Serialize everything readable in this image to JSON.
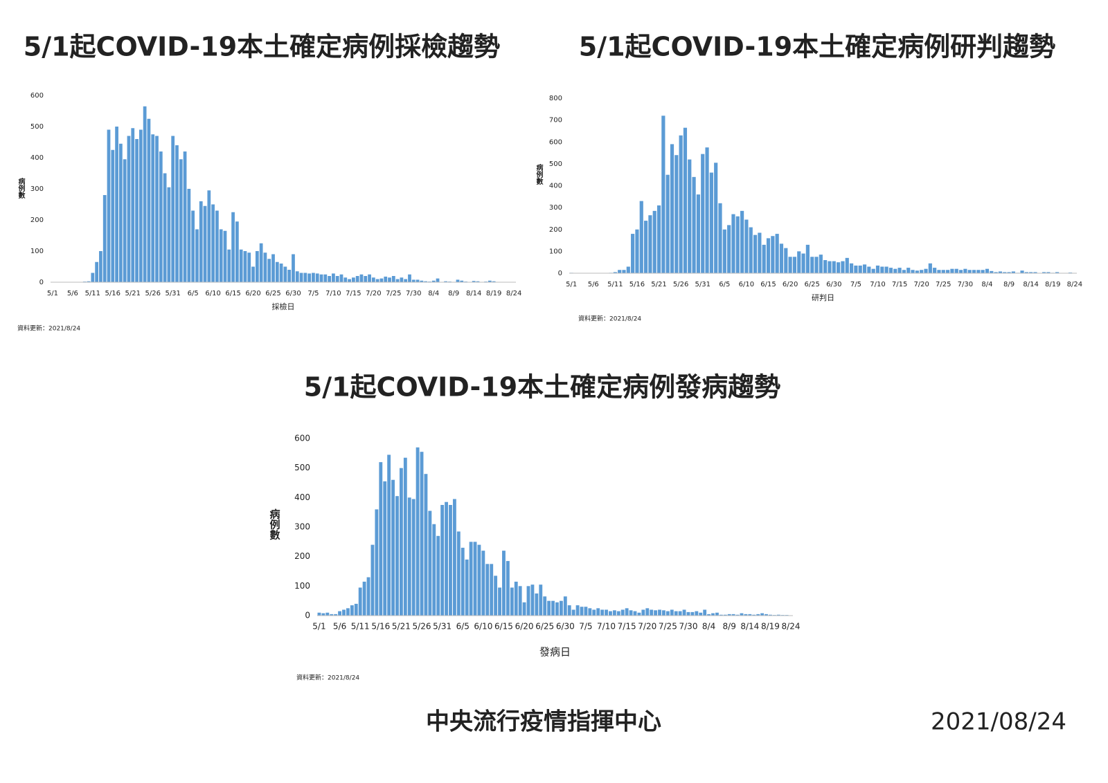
{
  "chart_data": [
    {
      "type": "bar",
      "title": "5/1起COVID-19本土確定病例採檢趨勢",
      "x_label": "採檢日",
      "y_label": "病例數",
      "note": "資料更新：2021/8/24",
      "color": "#5b9bd5",
      "grid": false,
      "categories": [
        "5/1",
        null,
        null,
        null,
        null,
        "5/6",
        null,
        null,
        null,
        null,
        "5/11",
        null,
        null,
        null,
        null,
        "5/16",
        null,
        null,
        null,
        null,
        "5/21",
        null,
        null,
        null,
        null,
        "5/26",
        null,
        null,
        null,
        null,
        "5/31",
        null,
        null,
        null,
        null,
        "6/5",
        null,
        null,
        null,
        null,
        "6/10",
        null,
        null,
        null,
        null,
        "6/15",
        null,
        null,
        null,
        null,
        "6/20",
        null,
        null,
        null,
        null,
        "6/25",
        null,
        null,
        null,
        null,
        "6/30",
        null,
        null,
        null,
        null,
        "7/5",
        null,
        null,
        null,
        null,
        "7/10",
        null,
        null,
        null,
        null,
        "7/15",
        null,
        null,
        null,
        null,
        "7/20",
        null,
        null,
        null,
        null,
        "7/25",
        null,
        null,
        null,
        null,
        "7/30",
        null,
        null,
        null,
        null,
        "8/4",
        null,
        null,
        null,
        null,
        "8/9",
        null,
        null,
        null,
        null,
        "8/14",
        null,
        null,
        null,
        null,
        "8/19",
        null,
        null,
        null,
        null,
        "8/24"
      ],
      "values": [
        0,
        0,
        0,
        0,
        0,
        0,
        0,
        0,
        2,
        3,
        30,
        65,
        100,
        280,
        490,
        425,
        500,
        445,
        395,
        470,
        495,
        460,
        490,
        565,
        525,
        475,
        470,
        420,
        350,
        305,
        470,
        440,
        395,
        420,
        300,
        230,
        170,
        260,
        245,
        295,
        250,
        230,
        170,
        165,
        105,
        225,
        195,
        105,
        100,
        95,
        50,
        100,
        125,
        95,
        75,
        90,
        65,
        60,
        50,
        40,
        90,
        35,
        30,
        30,
        28,
        30,
        28,
        25,
        25,
        20,
        28,
        20,
        25,
        15,
        10,
        15,
        20,
        25,
        20,
        25,
        15,
        10,
        12,
        18,
        15,
        20,
        10,
        15,
        10,
        25,
        8,
        8,
        5,
        3,
        2,
        5,
        12,
        0,
        3,
        2,
        0,
        8,
        5,
        2,
        0,
        4,
        3,
        0,
        2,
        5,
        3,
        0,
        1,
        0,
        0,
        0
      ],
      "ylim": [
        0,
        600
      ],
      "yticks": [
        0,
        100,
        200,
        300,
        400,
        500,
        600
      ]
    },
    {
      "type": "bar",
      "title": "5/1起COVID-19本土確定病例研判趨勢",
      "x_label": "研判日",
      "y_label": "病例數",
      "note": "資料更新：2021/8/24",
      "color": "#5b9bd5",
      "grid": false,
      "categories": [
        "5/1",
        null,
        null,
        null,
        null,
        "5/6",
        null,
        null,
        null,
        null,
        "5/11",
        null,
        null,
        null,
        null,
        "5/16",
        null,
        null,
        null,
        null,
        "5/21",
        null,
        null,
        null,
        null,
        "5/26",
        null,
        null,
        null,
        null,
        "5/31",
        null,
        null,
        null,
        null,
        "6/5",
        null,
        null,
        null,
        null,
        "6/10",
        null,
        null,
        null,
        null,
        "6/15",
        null,
        null,
        null,
        null,
        "6/20",
        null,
        null,
        null,
        null,
        "6/25",
        null,
        null,
        null,
        null,
        "6/30",
        null,
        null,
        null,
        null,
        "7/5",
        null,
        null,
        null,
        null,
        "7/10",
        null,
        null,
        null,
        null,
        "7/15",
        null,
        null,
        null,
        null,
        "7/20",
        null,
        null,
        null,
        null,
        "7/25",
        null,
        null,
        null,
        null,
        "7/30",
        null,
        null,
        null,
        null,
        "8/4",
        null,
        null,
        null,
        null,
        "8/9",
        null,
        null,
        null,
        null,
        "8/14",
        null,
        null,
        null,
        null,
        "8/19",
        null,
        null,
        null,
        null,
        "8/24"
      ],
      "values": [
        2,
        0,
        0,
        0,
        0,
        0,
        0,
        0,
        0,
        2,
        5,
        15,
        15,
        30,
        180,
        200,
        330,
        240,
        265,
        285,
        310,
        720,
        450,
        590,
        540,
        630,
        665,
        520,
        440,
        360,
        545,
        575,
        460,
        505,
        320,
        200,
        220,
        270,
        260,
        285,
        245,
        210,
        175,
        185,
        130,
        160,
        170,
        180,
        135,
        115,
        75,
        75,
        100,
        90,
        130,
        75,
        75,
        85,
        60,
        55,
        55,
        50,
        55,
        70,
        45,
        35,
        35,
        40,
        30,
        20,
        35,
        30,
        30,
        25,
        20,
        25,
        15,
        25,
        15,
        12,
        15,
        20,
        45,
        25,
        15,
        15,
        15,
        20,
        20,
        15,
        20,
        15,
        15,
        15,
        15,
        20,
        10,
        5,
        8,
        5,
        5,
        8,
        2,
        12,
        5,
        5,
        5,
        0,
        5,
        5,
        2,
        5,
        0,
        0,
        3,
        0
      ],
      "ylim": [
        0,
        800
      ],
      "yticks": [
        0,
        100,
        200,
        300,
        400,
        500,
        600,
        700,
        800
      ]
    },
    {
      "type": "bar",
      "title": "5/1起COVID-19本土確定病例發病趨勢",
      "x_label": "發病日",
      "y_label": "病例數",
      "note": "資料更新：2021/8/24",
      "color": "#5b9bd5",
      "grid": false,
      "categories": [
        "5/1",
        null,
        null,
        null,
        null,
        "5/6",
        null,
        null,
        null,
        null,
        "5/11",
        null,
        null,
        null,
        null,
        "5/16",
        null,
        null,
        null,
        null,
        "5/21",
        null,
        null,
        null,
        null,
        "5/26",
        null,
        null,
        null,
        null,
        "5/31",
        null,
        null,
        null,
        null,
        "6/5",
        null,
        null,
        null,
        null,
        "6/10",
        null,
        null,
        null,
        null,
        "6/15",
        null,
        null,
        null,
        null,
        "6/20",
        null,
        null,
        null,
        null,
        "6/25",
        null,
        null,
        null,
        null,
        "6/30",
        null,
        null,
        null,
        null,
        "7/5",
        null,
        null,
        null,
        null,
        "7/10",
        null,
        null,
        null,
        null,
        "7/15",
        null,
        null,
        null,
        null,
        "7/20",
        null,
        null,
        null,
        null,
        "7/25",
        null,
        null,
        null,
        null,
        "7/30",
        null,
        null,
        null,
        null,
        "8/4",
        null,
        null,
        null,
        null,
        "8/9",
        null,
        null,
        null,
        null,
        "8/14",
        null,
        null,
        null,
        null,
        "8/19",
        null,
        null,
        null,
        null,
        "8/24"
      ],
      "values": [
        10,
        8,
        10,
        5,
        5,
        15,
        20,
        25,
        35,
        40,
        95,
        115,
        130,
        240,
        360,
        520,
        455,
        545,
        460,
        405,
        500,
        535,
        400,
        395,
        570,
        555,
        480,
        355,
        310,
        270,
        375,
        385,
        375,
        395,
        285,
        230,
        190,
        250,
        250,
        240,
        220,
        175,
        175,
        135,
        95,
        220,
        185,
        95,
        115,
        100,
        45,
        100,
        105,
        75,
        105,
        65,
        50,
        50,
        45,
        50,
        65,
        35,
        20,
        35,
        30,
        30,
        25,
        20,
        25,
        20,
        20,
        15,
        18,
        15,
        20,
        25,
        18,
        15,
        10,
        20,
        25,
        20,
        18,
        20,
        18,
        15,
        20,
        15,
        15,
        20,
        12,
        12,
        15,
        10,
        20,
        5,
        8,
        10,
        3,
        3,
        5,
        5,
        3,
        8,
        5,
        5,
        3,
        5,
        8,
        5,
        3,
        2,
        3,
        2,
        2,
        0
      ],
      "ylim": [
        0,
        600
      ],
      "yticks": [
        0,
        100,
        200,
        300,
        400,
        500,
        600
      ]
    }
  ],
  "footer": {
    "organization": "中央流行疫情指揮中心",
    "date": "2021/08/24"
  }
}
